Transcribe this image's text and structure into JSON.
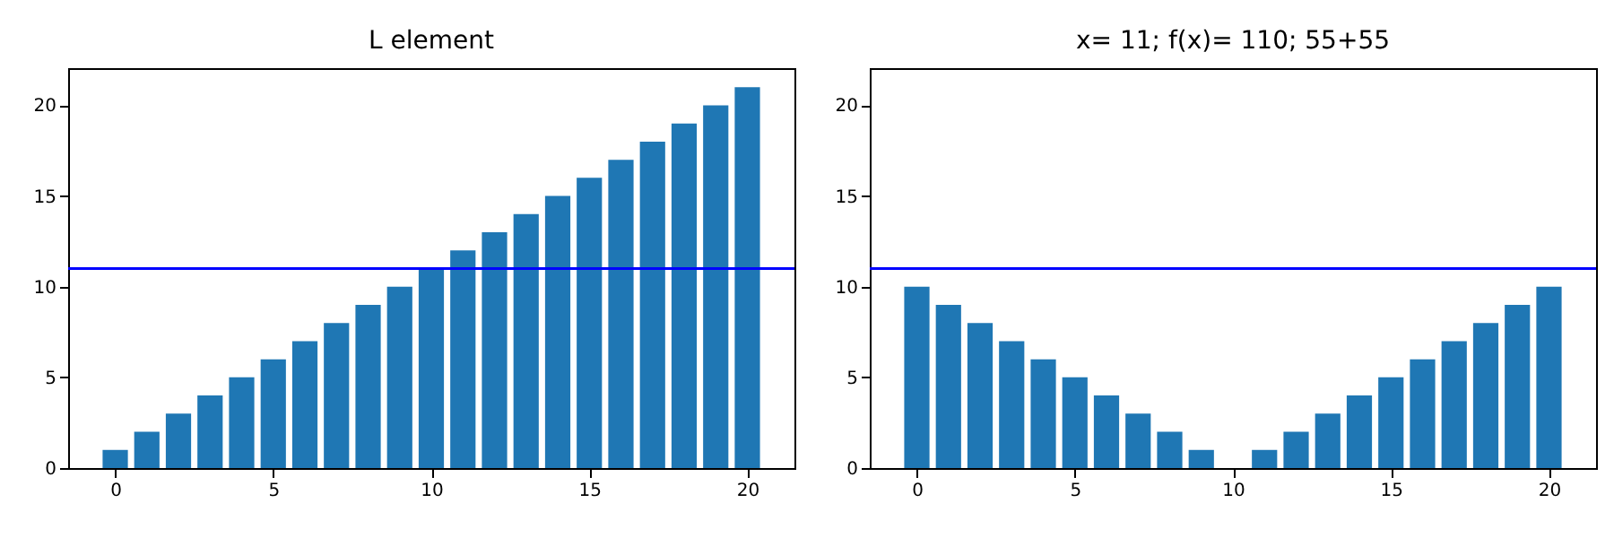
{
  "chart_data": [
    {
      "type": "bar",
      "title": "L element",
      "x": [
        0,
        1,
        2,
        3,
        4,
        5,
        6,
        7,
        8,
        9,
        10,
        11,
        12,
        13,
        14,
        15,
        16,
        17,
        18,
        19,
        20
      ],
      "values": [
        1,
        2,
        3,
        4,
        5,
        6,
        7,
        8,
        9,
        10,
        11,
        12,
        13,
        14,
        15,
        16,
        17,
        18,
        19,
        20,
        21
      ],
      "color": "#1f77b4",
      "xlim": [
        -1.49,
        21.49
      ],
      "ylim": [
        0,
        22.05
      ],
      "xticks": [
        0,
        5,
        10,
        15,
        20
      ],
      "yticks": [
        0,
        5,
        10,
        15,
        20
      ],
      "grid": false,
      "ref_lines": [
        {
          "axis": "y",
          "value": 11,
          "color": "#0000ff"
        }
      ]
    },
    {
      "type": "bar",
      "title": "x= 11; f(x)= 110; 55+55",
      "x": [
        0,
        1,
        2,
        3,
        4,
        5,
        6,
        7,
        8,
        9,
        10,
        11,
        12,
        13,
        14,
        15,
        16,
        17,
        18,
        19,
        20
      ],
      "values": [
        10,
        9,
        8,
        7,
        6,
        5,
        4,
        3,
        2,
        1,
        0,
        1,
        2,
        3,
        4,
        5,
        6,
        7,
        8,
        9,
        10
      ],
      "color": "#1f77b4",
      "xlim": [
        -1.49,
        21.49
      ],
      "ylim": [
        0,
        22.05
      ],
      "xticks": [
        0,
        5,
        10,
        15,
        20
      ],
      "yticks": [
        0,
        5,
        10,
        15,
        20
      ],
      "grid": false,
      "ref_lines": [
        {
          "axis": "y",
          "value": 11,
          "color": "#0000ff"
        }
      ]
    }
  ]
}
